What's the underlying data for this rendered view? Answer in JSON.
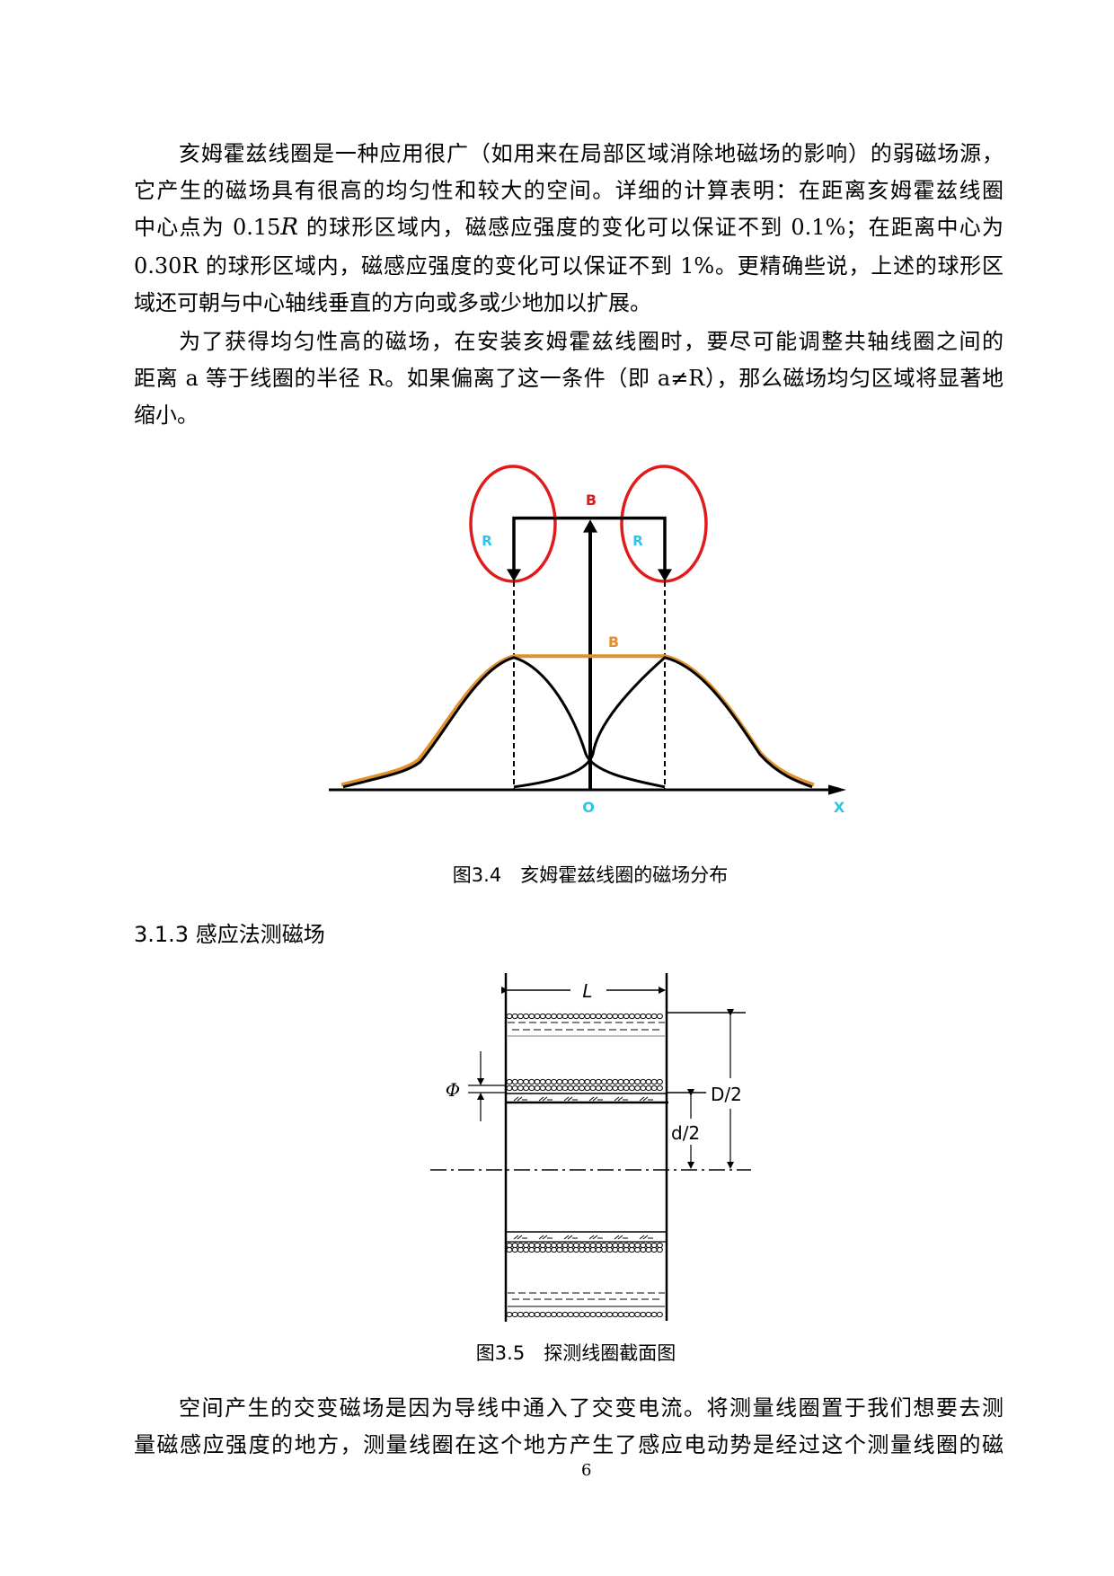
{
  "paragraphs": {
    "p1": [
      "亥姆霍兹线圈是一种应用很广（如用来在局部区域消除地磁场的影响）的弱磁场源，",
      "它产生的磁场具有很高的均匀性和较大的空间。详细的计算表明：在距离亥姆霍兹线圈",
      {
        "a": "中心点为 0.15",
        "r": "R",
        "b": " 的球形区域内，磁感应强度的变化可以保证不到 0.1%；在距离中心为"
      },
      "0.30R 的球形区域内，磁感应强度的变化可以保证不到 1%。更精确些说，上述的球形区",
      "域还可朝与中心轴线垂直的方向或多或少地加以扩展。"
    ],
    "p2": [
      "为了获得均匀性高的磁场，在安装亥姆霍兹线圈时，要尽可能调整共轴线圈之间的",
      "距离 a 等于线圈的半径 R。如果偏离了这一条件（即 a≠R），那么磁场均匀区域将显著地",
      "缩小。"
    ],
    "p3": [
      "空间产生的交变磁场是因为导线中通入了交变电流。将测量线圈置于我们想要去测",
      "量磁感应强度的地方，测量线圈在这个地方产生了感应电动势是经过这个测量线圈的磁"
    ]
  },
  "figure1": {
    "labels": {
      "b_top": "B",
      "r_left": "R",
      "r_right": "R",
      "b_curve": "B",
      "origin": "O",
      "x_axis": "X"
    },
    "caption": "图3.4　亥姆霍兹线圈的磁场分布",
    "colors": {
      "coil": "#e01b1b",
      "total_field": "#e0902c",
      "label_cyan": "#2ec4e6",
      "label_red": "#e01b1b"
    }
  },
  "section_heading": "3.1.3 感应法测磁场",
  "figure2": {
    "labels": {
      "length": "L",
      "outer": "D/2",
      "inner": "d/2",
      "wire": "Φ"
    },
    "caption": "图3.5　探测线圈截面图"
  },
  "page_number": "6"
}
